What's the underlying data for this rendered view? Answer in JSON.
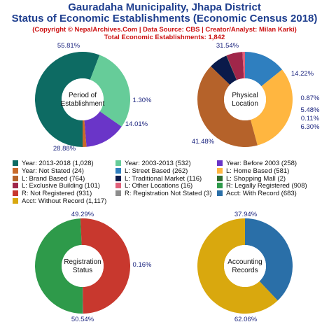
{
  "header": {
    "title_line1": "Gauradaha Municipality, Jhapa District",
    "title_line2": "Status of Economic Establishments (Economic Census 2018)",
    "credit": "(Copyright © NepalArchives.Com | Data Source: CBS | Creator/Analyst: Milan Karki)",
    "total": "Total Economic Establishments: 1,842"
  },
  "chart_data": [
    {
      "type": "pie",
      "center_label": [
        "Period of",
        "Establishment"
      ],
      "slices": [
        {
          "name": "Year: 2013-2018",
          "value": 1028,
          "pct_label": "55.81%",
          "color": "#0d6b63"
        },
        {
          "name": "Year: 2003-2013",
          "value": 532,
          "pct_label": "28.88%",
          "color": "#66cc99"
        },
        {
          "name": "Year: Before 2003",
          "value": 258,
          "pct_label": "14.01%",
          "color": "#6a35c8"
        },
        {
          "name": "Year: Not Stated",
          "value": 24,
          "pct_label": "1.30%",
          "color": "#c86a2a"
        }
      ]
    },
    {
      "type": "pie",
      "center_label": [
        "Physical",
        "Location"
      ],
      "slices": [
        {
          "name": "L: Street Based",
          "value": 262,
          "pct_label": "14.22%",
          "color": "#2f7fbf"
        },
        {
          "name": "L: Home Based",
          "value": 581,
          "pct_label": "31.54%",
          "color": "#ffb640"
        },
        {
          "name": "L: Brand Based",
          "value": 764,
          "pct_label": "41.48%",
          "color": "#b5622a"
        },
        {
          "name": "L: Traditional Market",
          "value": 116,
          "pct_label": "6.30%",
          "color": "#0a1a4a"
        },
        {
          "name": "L: Shopping Mall",
          "value": 2,
          "pct_label": "0.11%",
          "color": "#2f6b2f"
        },
        {
          "name": "L: Exclusive Building",
          "value": 101,
          "pct_label": "5.48%",
          "color": "#a0264a"
        },
        {
          "name": "L: Other Locations",
          "value": 16,
          "pct_label": "0.87%",
          "color": "#e0607a"
        }
      ]
    },
    {
      "type": "pie",
      "center_label": [
        "Registration",
        "Status"
      ],
      "slices": [
        {
          "name": "R: Legally Registered",
          "value": 908,
          "pct_label": "49.29%",
          "color": "#2e9a4a"
        },
        {
          "name": "R: Not Registered",
          "value": 931,
          "pct_label": "50.54%",
          "color": "#c8382e"
        },
        {
          "name": "R: Registration Not Stated",
          "value": 3,
          "pct_label": "0.16%",
          "color": "#8c8c8c"
        }
      ]
    },
    {
      "type": "pie",
      "center_label": [
        "Accounting",
        "Records"
      ],
      "slices": [
        {
          "name": "Acct: With Record",
          "value": 683,
          "pct_label": "37.94%",
          "color": "#2a6fa8"
        },
        {
          "name": "Acct: Without Record",
          "value": 1117,
          "pct_label": "62.06%",
          "color": "#d9a80e"
        }
      ]
    }
  ],
  "legend": [
    {
      "label": "Year: 2013-2018 (1,028)",
      "color": "#0d6b63"
    },
    {
      "label": "Year: 2003-2013 (532)",
      "color": "#66cc99"
    },
    {
      "label": "Year: Before 2003 (258)",
      "color": "#6a35c8"
    },
    {
      "label": "Year: Not Stated (24)",
      "color": "#c86a2a"
    },
    {
      "label": "L: Street Based (262)",
      "color": "#2f7fbf"
    },
    {
      "label": "L: Home Based (581)",
      "color": "#ffb640"
    },
    {
      "label": "L: Brand Based (764)",
      "color": "#b5622a"
    },
    {
      "label": "L: Traditional Market (116)",
      "color": "#0a1a4a"
    },
    {
      "label": "L: Shopping Mall (2)",
      "color": "#2f6b2f"
    },
    {
      "label": "L: Exclusive Building (101)",
      "color": "#a0264a"
    },
    {
      "label": "L: Other Locations (16)",
      "color": "#e0607a"
    },
    {
      "label": "R: Legally Registered (908)",
      "color": "#2e9a4a"
    },
    {
      "label": "R: Not Registered (931)",
      "color": "#c8382e"
    },
    {
      "label": "R: Registration Not Stated (3)",
      "color": "#8c8c8c"
    },
    {
      "label": "Acct: With Record (683)",
      "color": "#2a6fa8"
    },
    {
      "label": "Acct: Without Record (1,117)",
      "color": "#d9a80e"
    }
  ]
}
